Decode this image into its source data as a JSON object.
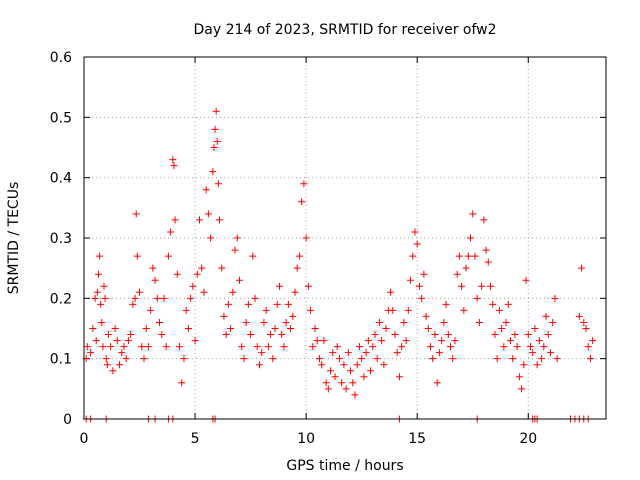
{
  "chart_data": {
    "type": "scatter",
    "title": "Day 214 of 2023, SRMTID for receiver ofw2",
    "xlabel": "GPS time / hours",
    "ylabel": "SRMTID / TECUs",
    "xlim": [
      0,
      23.5
    ],
    "ylim": [
      0,
      0.6
    ],
    "xticks": [
      0,
      5,
      10,
      15,
      20
    ],
    "xtick_labels": [
      "0",
      "5",
      "10",
      "15",
      "20"
    ],
    "yticks": [
      0,
      0.1,
      0.2,
      0.3,
      0.4,
      0.5,
      0.6
    ],
    "ytick_labels": [
      "0",
      "0.1",
      "0.2",
      "0.3",
      "0.4",
      "0.5",
      "0.6"
    ],
    "grid": true,
    "marker": "plus",
    "color": "#ff0000",
    "series": [
      {
        "name": "SRMTID",
        "points": [
          [
            0.1,
            0.1
          ],
          [
            0.15,
            0.12
          ],
          [
            0.3,
            0.11
          ],
          [
            0.4,
            0.15
          ],
          [
            0.5,
            0.2
          ],
          [
            0.55,
            0.13
          ],
          [
            0.6,
            0.21
          ],
          [
            0.65,
            0.24
          ],
          [
            0.7,
            0.27
          ],
          [
            0.75,
            0.19
          ],
          [
            0.8,
            0.16
          ],
          [
            0.85,
            0.12
          ],
          [
            0.9,
            0.22
          ],
          [
            0.95,
            0.2
          ],
          [
            1.0,
            0.1
          ],
          [
            1.05,
            0.09
          ],
          [
            1.1,
            0.14
          ],
          [
            1.2,
            0.12
          ],
          [
            1.3,
            0.08
          ],
          [
            1.4,
            0.15
          ],
          [
            1.5,
            0.13
          ],
          [
            1.6,
            0.09
          ],
          [
            1.7,
            0.11
          ],
          [
            1.8,
            0.12
          ],
          [
            1.9,
            0.1
          ],
          [
            2.0,
            0.13
          ],
          [
            2.1,
            0.14
          ],
          [
            2.2,
            0.19
          ],
          [
            2.3,
            0.2
          ],
          [
            2.35,
            0.34
          ],
          [
            2.4,
            0.27
          ],
          [
            2.5,
            0.21
          ],
          [
            2.6,
            0.12
          ],
          [
            2.7,
            0.1
          ],
          [
            2.8,
            0.15
          ],
          [
            2.9,
            0.12
          ],
          [
            3.0,
            0.18
          ],
          [
            3.1,
            0.25
          ],
          [
            3.2,
            0.23
          ],
          [
            3.3,
            0.2
          ],
          [
            3.4,
            0.16
          ],
          [
            3.5,
            0.14
          ],
          [
            3.6,
            0.2
          ],
          [
            3.7,
            0.12
          ],
          [
            3.8,
            0.27
          ],
          [
            3.9,
            0.31
          ],
          [
            4.0,
            0.43
          ],
          [
            4.05,
            0.42
          ],
          [
            4.1,
            0.33
          ],
          [
            4.2,
            0.24
          ],
          [
            4.3,
            0.12
          ],
          [
            4.4,
            0.06
          ],
          [
            4.5,
            0.1
          ],
          [
            4.6,
            0.18
          ],
          [
            4.7,
            0.15
          ],
          [
            4.8,
            0.2
          ],
          [
            4.9,
            0.22
          ],
          [
            5.0,
            0.13
          ],
          [
            5.1,
            0.24
          ],
          [
            5.2,
            0.33
          ],
          [
            5.3,
            0.25
          ],
          [
            5.4,
            0.21
          ],
          [
            5.5,
            0.38
          ],
          [
            5.6,
            0.34
          ],
          [
            5.7,
            0.3
          ],
          [
            5.8,
            0.41
          ],
          [
            5.85,
            0.45
          ],
          [
            5.9,
            0.48
          ],
          [
            5.95,
            0.51
          ],
          [
            6.0,
            0.46
          ],
          [
            6.05,
            0.39
          ],
          [
            6.1,
            0.33
          ],
          [
            6.2,
            0.25
          ],
          [
            6.3,
            0.17
          ],
          [
            6.4,
            0.14
          ],
          [
            6.5,
            0.19
          ],
          [
            6.6,
            0.15
          ],
          [
            6.7,
            0.21
          ],
          [
            6.8,
            0.28
          ],
          [
            6.9,
            0.3
          ],
          [
            7.0,
            0.23
          ],
          [
            7.1,
            0.12
          ],
          [
            7.2,
            0.1
          ],
          [
            7.3,
            0.16
          ],
          [
            7.4,
            0.19
          ],
          [
            7.5,
            0.14
          ],
          [
            7.6,
            0.27
          ],
          [
            7.7,
            0.2
          ],
          [
            7.8,
            0.12
          ],
          [
            7.9,
            0.09
          ],
          [
            8.0,
            0.11
          ],
          [
            8.1,
            0.16
          ],
          [
            8.2,
            0.18
          ],
          [
            8.3,
            0.12
          ],
          [
            8.4,
            0.14
          ],
          [
            8.5,
            0.1
          ],
          [
            8.6,
            0.15
          ],
          [
            8.7,
            0.19
          ],
          [
            8.8,
            0.22
          ],
          [
            8.9,
            0.14
          ],
          [
            9.0,
            0.12
          ],
          [
            9.1,
            0.16
          ],
          [
            9.2,
            0.19
          ],
          [
            9.3,
            0.15
          ],
          [
            9.4,
            0.17
          ],
          [
            9.5,
            0.21
          ],
          [
            9.6,
            0.25
          ],
          [
            9.7,
            0.27
          ],
          [
            9.8,
            0.36
          ],
          [
            9.9,
            0.39
          ],
          [
            10.0,
            0.3
          ],
          [
            10.1,
            0.22
          ],
          [
            10.2,
            0.18
          ],
          [
            10.3,
            0.12
          ],
          [
            10.4,
            0.15
          ],
          [
            10.5,
            0.13
          ],
          [
            10.6,
            0.1
          ],
          [
            10.7,
            0.09
          ],
          [
            10.8,
            0.13
          ],
          [
            10.9,
            0.06
          ],
          [
            11.0,
            0.05
          ],
          [
            11.1,
            0.08
          ],
          [
            11.2,
            0.11
          ],
          [
            11.3,
            0.07
          ],
          [
            11.4,
            0.12
          ],
          [
            11.5,
            0.1
          ],
          [
            11.6,
            0.06
          ],
          [
            11.7,
            0.09
          ],
          [
            11.8,
            0.05
          ],
          [
            11.9,
            0.11
          ],
          [
            12.0,
            0.08
          ],
          [
            12.1,
            0.06
          ],
          [
            12.2,
            0.04
          ],
          [
            12.3,
            0.09
          ],
          [
            12.4,
            0.12
          ],
          [
            12.5,
            0.1
          ],
          [
            12.6,
            0.07
          ],
          [
            12.7,
            0.11
          ],
          [
            12.8,
            0.13
          ],
          [
            12.9,
            0.08
          ],
          [
            13.0,
            0.12
          ],
          [
            13.1,
            0.14
          ],
          [
            13.2,
            0.1
          ],
          [
            13.3,
            0.16
          ],
          [
            13.4,
            0.13
          ],
          [
            13.5,
            0.09
          ],
          [
            13.6,
            0.15
          ],
          [
            13.7,
            0.18
          ],
          [
            13.8,
            0.21
          ],
          [
            13.9,
            0.18
          ],
          [
            14.0,
            0.14
          ],
          [
            14.1,
            0.11
          ],
          [
            14.2,
            0.07
          ],
          [
            14.3,
            0.12
          ],
          [
            14.4,
            0.16
          ],
          [
            14.5,
            0.13
          ],
          [
            14.6,
            0.18
          ],
          [
            14.7,
            0.23
          ],
          [
            14.8,
            0.27
          ],
          [
            14.9,
            0.31
          ],
          [
            15.0,
            0.29
          ],
          [
            15.1,
            0.22
          ],
          [
            15.2,
            0.2
          ],
          [
            15.3,
            0.24
          ],
          [
            15.4,
            0.17
          ],
          [
            15.5,
            0.15
          ],
          [
            15.6,
            0.12
          ],
          [
            15.7,
            0.1
          ],
          [
            15.8,
            0.14
          ],
          [
            15.9,
            0.06
          ],
          [
            16.0,
            0.11
          ],
          [
            16.1,
            0.13
          ],
          [
            16.2,
            0.16
          ],
          [
            16.3,
            0.19
          ],
          [
            16.4,
            0.14
          ],
          [
            16.5,
            0.12
          ],
          [
            16.6,
            0.1
          ],
          [
            16.7,
            0.13
          ],
          [
            16.8,
            0.24
          ],
          [
            16.9,
            0.27
          ],
          [
            17.0,
            0.22
          ],
          [
            17.1,
            0.18
          ],
          [
            17.2,
            0.25
          ],
          [
            17.3,
            0.27
          ],
          [
            17.4,
            0.3
          ],
          [
            17.5,
            0.34
          ],
          [
            17.6,
            0.27
          ],
          [
            17.7,
            0.2
          ],
          [
            17.8,
            0.16
          ],
          [
            17.9,
            0.22
          ],
          [
            18.0,
            0.33
          ],
          [
            18.1,
            0.28
          ],
          [
            18.2,
            0.26
          ],
          [
            18.3,
            0.22
          ],
          [
            18.4,
            0.19
          ],
          [
            18.5,
            0.14
          ],
          [
            18.6,
            0.1
          ],
          [
            18.7,
            0.18
          ],
          [
            18.8,
            0.15
          ],
          [
            18.9,
            0.12
          ],
          [
            19.0,
            0.16
          ],
          [
            19.1,
            0.19
          ],
          [
            19.2,
            0.13
          ],
          [
            19.3,
            0.1
          ],
          [
            19.4,
            0.14
          ],
          [
            19.5,
            0.12
          ],
          [
            19.6,
            0.07
          ],
          [
            19.7,
            0.05
          ],
          [
            19.8,
            0.09
          ],
          [
            19.9,
            0.23
          ],
          [
            20.0,
            0.14
          ],
          [
            20.1,
            0.12
          ],
          [
            20.2,
            0.11
          ],
          [
            20.3,
            0.15
          ],
          [
            20.4,
            0.09
          ],
          [
            20.5,
            0.13
          ],
          [
            20.6,
            0.1
          ],
          [
            20.7,
            0.12
          ],
          [
            20.8,
            0.17
          ],
          [
            20.9,
            0.14
          ],
          [
            21.0,
            0.11
          ],
          [
            21.1,
            0.16
          ],
          [
            21.2,
            0.2
          ],
          [
            21.3,
            0.1
          ],
          [
            22.3,
            0.17
          ],
          [
            22.4,
            0.25
          ],
          [
            22.5,
            0.16
          ],
          [
            22.6,
            0.15
          ],
          [
            22.7,
            0.12
          ],
          [
            22.8,
            0.1
          ],
          [
            22.9,
            0.13
          ]
        ]
      }
    ],
    "zero_points_x": [
      0.1,
      0.3,
      1.0,
      2.9,
      3.2,
      3.8,
      4.0,
      5.8,
      5.9,
      14.2,
      17.7,
      20.2,
      20.3,
      20.4,
      21.9,
      22.1,
      22.3,
      22.5,
      22.7
    ]
  }
}
